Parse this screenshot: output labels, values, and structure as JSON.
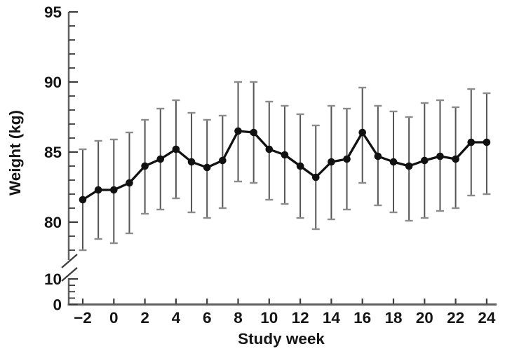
{
  "chart_data": {
    "type": "line",
    "title": "",
    "xlabel": "Study week",
    "ylabel": "Weight (kg)",
    "x": [
      -2,
      -1,
      0,
      1,
      2,
      3,
      4,
      5,
      6,
      7,
      8,
      9,
      10,
      11,
      12,
      13,
      14,
      15,
      16,
      17,
      18,
      19,
      20,
      21,
      22,
      23,
      24
    ],
    "series": [
      {
        "name": "weight",
        "values": [
          81.6,
          82.3,
          82.3,
          82.8,
          84.0,
          84.5,
          85.2,
          84.3,
          83.9,
          84.4,
          86.5,
          86.4,
          85.2,
          84.8,
          84.0,
          83.2,
          84.3,
          84.5,
          86.4,
          84.7,
          84.3,
          84.0,
          84.4,
          84.7,
          84.5,
          85.7,
          85.7
        ],
        "upper_cap": [
          85.2,
          85.8,
          85.9,
          86.4,
          87.3,
          88.1,
          88.7,
          87.8,
          87.3,
          87.6,
          90.0,
          90.0,
          88.6,
          88.3,
          87.7,
          86.9,
          88.3,
          88.1,
          89.6,
          88.3,
          87.9,
          87.5,
          88.5,
          88.7,
          88.2,
          89.5,
          89.2
        ],
        "lower_cap": [
          78.0,
          78.8,
          78.5,
          79.2,
          80.6,
          80.9,
          81.7,
          80.7,
          80.3,
          81.0,
          82.9,
          82.8,
          81.6,
          81.3,
          80.3,
          79.5,
          80.2,
          80.9,
          82.8,
          81.2,
          80.7,
          80.1,
          80.3,
          80.8,
          81.0,
          81.9,
          82.0
        ]
      }
    ],
    "x_major_ticks": [
      -2,
      0,
      2,
      4,
      6,
      8,
      10,
      12,
      14,
      16,
      18,
      20,
      22,
      24
    ],
    "x_tick_labels": [
      "−2",
      "0",
      "2",
      "4",
      "6",
      "8",
      "10",
      "12",
      "14",
      "16",
      "18",
      "20",
      "22",
      "24"
    ],
    "y_axis": {
      "upper_major_ticks": [
        95,
        90,
        85,
        80
      ],
      "upper_major_labels": [
        "95",
        "90",
        "85",
        "80"
      ],
      "upper_minor_range": [
        78,
        94
      ],
      "upper_minor_step": 1,
      "lower_major_ticks": [
        10,
        0
      ],
      "lower_major_labels": [
        "10",
        "0"
      ],
      "lower_minor_ticks": [
        7.5,
        5,
        2.5
      ],
      "axis_break": true,
      "upper_range": [
        78,
        95
      ],
      "lower_range": [
        0,
        10
      ]
    },
    "legend": "none",
    "grid": "off",
    "colors": {
      "line": "#111111",
      "marker": "#111111",
      "error_stem": "#555555",
      "error_cap": "#8c8c8c",
      "axis": "#606060",
      "tick": "#3c3c3c",
      "text": "#151515",
      "background": "#ffffff"
    }
  }
}
